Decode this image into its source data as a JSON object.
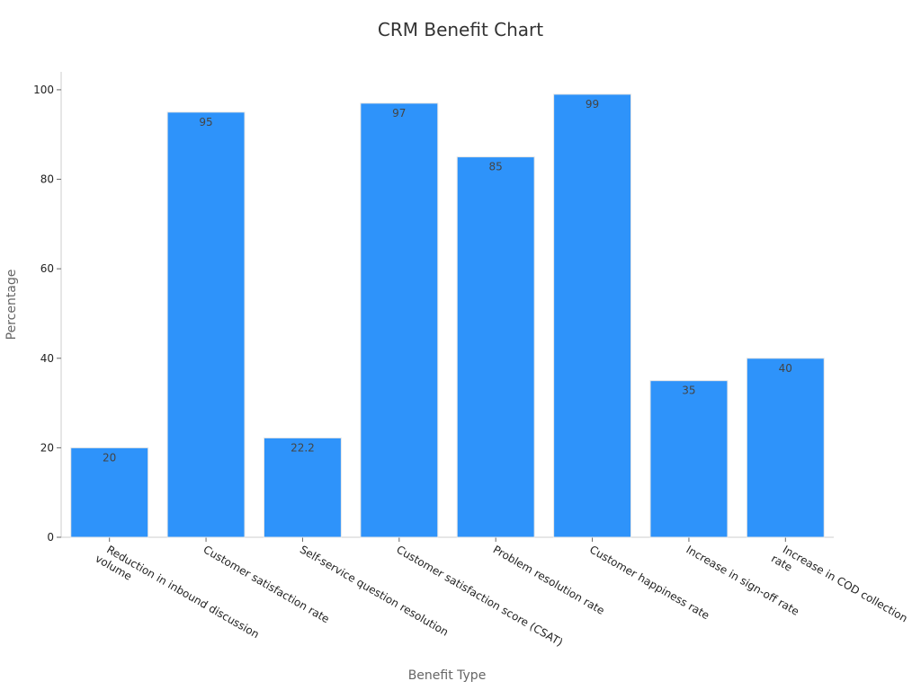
{
  "chart_data": {
    "type": "bar",
    "title": "CRM Benefit Chart",
    "xlabel": "Benefit Type",
    "ylabel": "Percentage",
    "ylim": [
      0,
      104
    ],
    "yticks": [
      0,
      20,
      40,
      60,
      80,
      100
    ],
    "categories": [
      "Reduction in inbound discussion\nvolume",
      "Customer satisfaction rate",
      "Self-service question resolution",
      "Customer satisfaction score (CSAT)",
      "Problem resolution rate",
      "Customer happiness rate",
      "Increase in sign-off rate",
      "Increase in COD collection\nrate"
    ],
    "values": [
      20,
      95,
      22.2,
      97,
      85,
      99,
      35,
      40
    ],
    "value_labels": [
      "20",
      "95",
      "22.2",
      "97",
      "85",
      "99",
      "35",
      "40"
    ],
    "bar_color": "#2e93fa",
    "grid": false,
    "legend": "none"
  }
}
